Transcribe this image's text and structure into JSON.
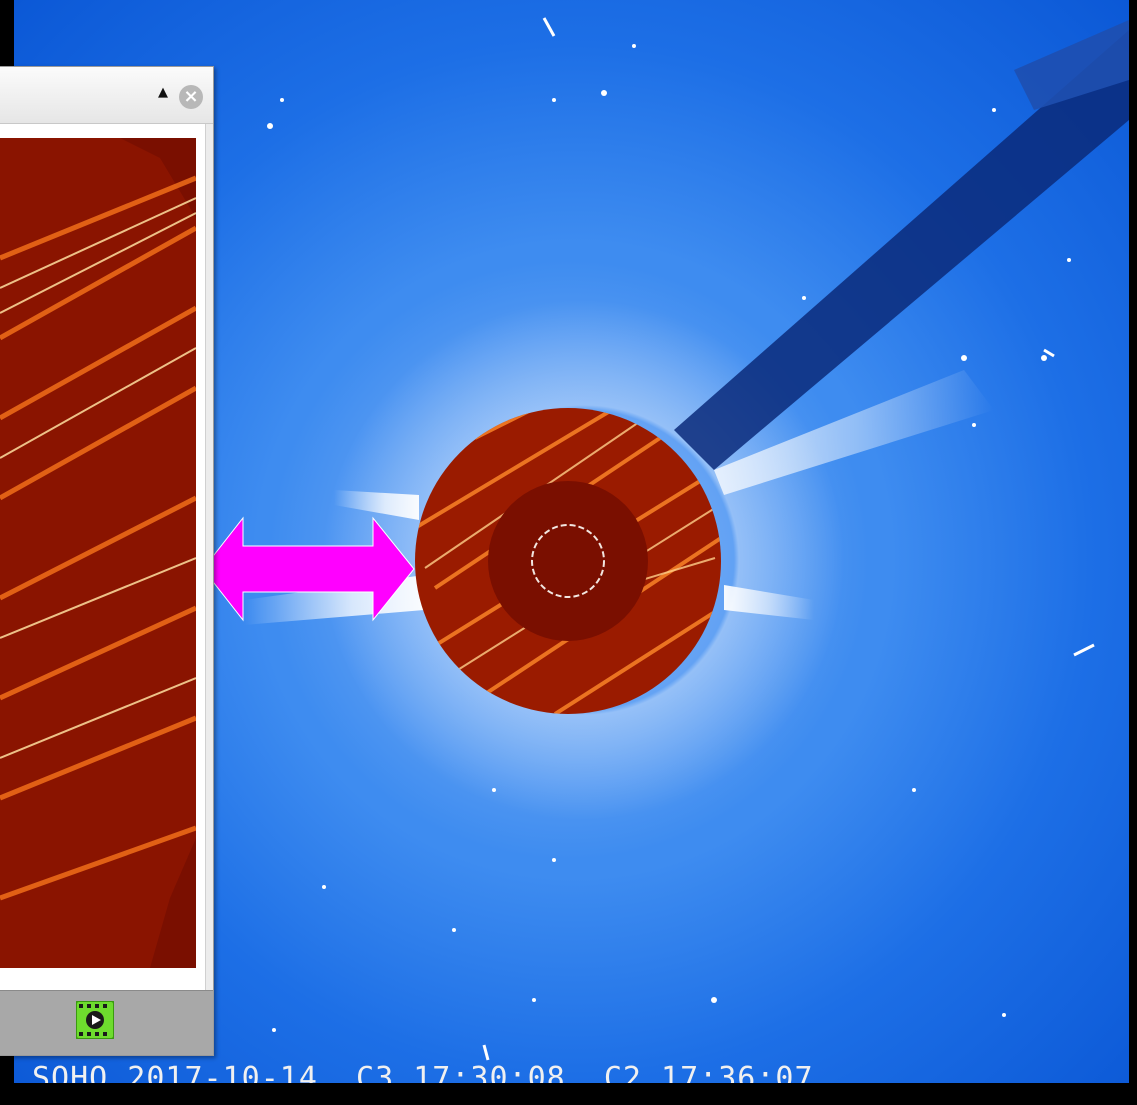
{
  "viewer": {
    "collapse_icon": "triangle-up-icon",
    "close_icon": "close-circle-icon",
    "collapse_glyph": "▲",
    "close_glyph": "×",
    "footer_icon": "movie-play-icon"
  },
  "coronagraph": {
    "caption": "SOHO 2017-10-14  C3 17:30:08  C2 17:36:07"
  },
  "colors": {
    "sky_blue": "#1d6fe6",
    "solar_red": "#7a0f00",
    "arrow_magenta": "#ff00ff"
  }
}
